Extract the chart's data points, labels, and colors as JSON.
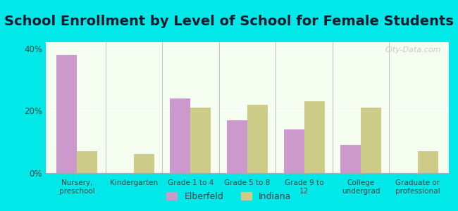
{
  "title": "School Enrollment by Level of School for Female Students",
  "categories": [
    "Nursery,\npreschool",
    "Kindergarten",
    "Grade 1 to 4",
    "Grade 5 to 8",
    "Grade 9 to\n12",
    "College\nundergrad",
    "Graduate or\nprofessional"
  ],
  "elberfeld": [
    38.0,
    0.0,
    24.0,
    17.0,
    14.0,
    9.0,
    0.0
  ],
  "indiana": [
    7.0,
    6.0,
    21.0,
    22.0,
    23.0,
    21.0,
    7.0
  ],
  "elberfeld_color": "#cc99cc",
  "indiana_color": "#cccc88",
  "background_outer": "#00e8e8",
  "background_inner_top": "#f5fdf0",
  "background_inner_bottom": "#e8f5e0",
  "ylim": [
    0,
    42
  ],
  "yticks": [
    0,
    20,
    40
  ],
  "ytick_labels": [
    "0%",
    "20%",
    "40%"
  ],
  "legend_labels": [
    "Elberfeld",
    "Indiana"
  ],
  "title_fontsize": 14,
  "bar_width": 0.36,
  "watermark": "City-Data.com"
}
